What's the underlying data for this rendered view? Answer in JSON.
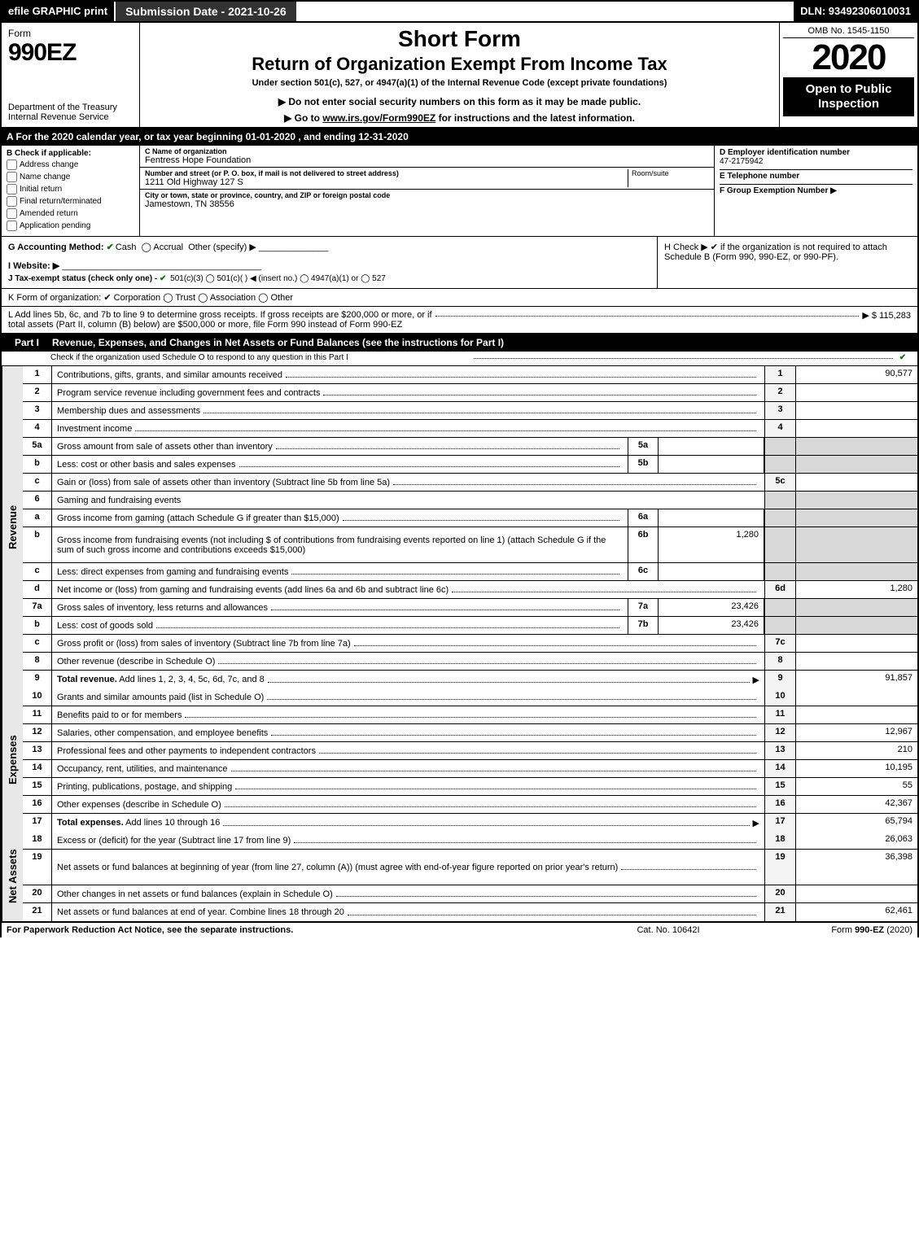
{
  "topbar": {
    "efile": "efile GRAPHIC print",
    "subdate": "Submission Date - 2021-10-26",
    "dln": "DLN: 93492306010031"
  },
  "header": {
    "form_label": "Form",
    "form_no": "990EZ",
    "dept": "Department of the Treasury\nInternal Revenue Service",
    "short": "Short Form",
    "return_title": "Return of Organization Exempt From Income Tax",
    "undersec": "Under section 501(c), 527, or 4947(a)(1) of the Internal Revenue Code (except private foundations)",
    "warn": "▶ Do not enter social security numbers on this form as it may be made public.",
    "goto_pre": "▶ Go to ",
    "goto_link": "www.irs.gov/Form990EZ",
    "goto_post": " for instructions and the latest information.",
    "omb": "OMB No. 1545-1150",
    "year": "2020",
    "inspect": "Open to Public Inspection"
  },
  "row_a": "A For the 2020 calendar year, or tax year beginning 01-01-2020 , and ending 12-31-2020",
  "col_b": {
    "hdr": "B  Check if applicable:",
    "items": [
      "Address change",
      "Name change",
      "Initial return",
      "Final return/terminated",
      "Amended return",
      "Application pending"
    ]
  },
  "col_c": {
    "name_lbl": "C Name of organization",
    "name_val": "Fentress Hope Foundation",
    "addr_lbl": "Number and street (or P. O. box, if mail is not delivered to street address)",
    "addr_val": "1211 Old Highway 127 S",
    "room_lbl": "Room/suite",
    "city_lbl": "City or town, state or province, country, and ZIP or foreign postal code",
    "city_val": "Jamestown, TN  38556"
  },
  "col_d": {
    "ein_lbl": "D Employer identification number",
    "ein_val": "47-2175942",
    "tel_lbl": "E Telephone number",
    "tel_val": "",
    "grp_lbl": "F Group Exemption Number  ▶",
    "grp_val": ""
  },
  "row_g": {
    "g": "G Accounting Method:",
    "cash": "Cash",
    "accrual": "Accrual",
    "other": "Other (specify) ▶",
    "i": "I Website: ▶",
    "j": "J Tax-exempt status (check only one) - ",
    "j_opts": "501(c)(3)  ◯ 501(c)(  ) ◀ (insert no.)  ◯ 4947(a)(1) or  ◯ 527"
  },
  "row_h": "H  Check ▶ ✔ if the organization is not required to attach Schedule B (Form 990, 990-EZ, or 990-PF).",
  "row_k": "K Form of organization:  ✔ Corporation  ◯ Trust  ◯ Association  ◯ Other",
  "row_l": {
    "txt": "L Add lines 5b, 6c, and 7b to line 9 to determine gross receipts. If gross receipts are $200,000 or more, or if total assets (Part II, column (B) below) are $500,000 or more, file Form 990 instead of Form 990-EZ",
    "val": "▶ $ 115,283"
  },
  "part1": {
    "num": "Part I",
    "title": "Revenue, Expenses, and Changes in Net Assets or Fund Balances (see the instructions for Part I)",
    "sub": "Check if the organization used Schedule O to respond to any question in this Part I"
  },
  "sections": {
    "revenue": "Revenue",
    "expenses": "Expenses",
    "netassets": "Net Assets"
  },
  "lines": [
    {
      "sec": "revenue",
      "n": "1",
      "d": "Contributions, gifts, grants, and similar amounts received",
      "on": "1",
      "ov": "90,577"
    },
    {
      "sec": "revenue",
      "n": "2",
      "d": "Program service revenue including government fees and contracts",
      "on": "2",
      "ov": ""
    },
    {
      "sec": "revenue",
      "n": "3",
      "d": "Membership dues and assessments",
      "on": "3",
      "ov": ""
    },
    {
      "sec": "revenue",
      "n": "4",
      "d": "Investment income",
      "on": "4",
      "ov": ""
    },
    {
      "sec": "revenue",
      "n": "5a",
      "d": "Gross amount from sale of assets other than inventory",
      "in": "5a",
      "iv": "",
      "shade": true
    },
    {
      "sec": "revenue",
      "n": "b",
      "d": "Less: cost or other basis and sales expenses",
      "in": "5b",
      "iv": "",
      "shade": true
    },
    {
      "sec": "revenue",
      "n": "c",
      "d": "Gain or (loss) from sale of assets other than inventory (Subtract line 5b from line 5a)",
      "on": "5c",
      "ov": ""
    },
    {
      "sec": "revenue",
      "n": "6",
      "d": "Gaming and fundraising events",
      "plain": true,
      "shade": true
    },
    {
      "sec": "revenue",
      "n": "a",
      "d": "Gross income from gaming (attach Schedule G if greater than $15,000)",
      "in": "6a",
      "iv": "",
      "shade": true
    },
    {
      "sec": "revenue",
      "n": "b",
      "d": "Gross income from fundraising events (not including $                  of contributions from fundraising events reported on line 1) (attach Schedule G if the sum of such gross income and contributions exceeds $15,000)",
      "in": "6b",
      "iv": "1,280",
      "shade": true,
      "tall": true
    },
    {
      "sec": "revenue",
      "n": "c",
      "d": "Less: direct expenses from gaming and fundraising events",
      "in": "6c",
      "iv": "",
      "shade": true
    },
    {
      "sec": "revenue",
      "n": "d",
      "d": "Net income or (loss) from gaming and fundraising events (add lines 6a and 6b and subtract line 6c)",
      "on": "6d",
      "ov": "1,280"
    },
    {
      "sec": "revenue",
      "n": "7a",
      "d": "Gross sales of inventory, less returns and allowances",
      "in": "7a",
      "iv": "23,426",
      "shade": true
    },
    {
      "sec": "revenue",
      "n": "b",
      "d": "Less: cost of goods sold",
      "in": "7b",
      "iv": "23,426",
      "shade": true
    },
    {
      "sec": "revenue",
      "n": "c",
      "d": "Gross profit or (loss) from sales of inventory (Subtract line 7b from line 7a)",
      "on": "7c",
      "ov": ""
    },
    {
      "sec": "revenue",
      "n": "8",
      "d": "Other revenue (describe in Schedule O)",
      "on": "8",
      "ov": ""
    },
    {
      "sec": "revenue",
      "n": "9",
      "d": "Total revenue. Add lines 1, 2, 3, 4, 5c, 6d, 7c, and 8",
      "on": "9",
      "ov": "91,857",
      "bold": true,
      "arrow": true
    },
    {
      "sec": "expenses",
      "n": "10",
      "d": "Grants and similar amounts paid (list in Schedule O)",
      "on": "10",
      "ov": ""
    },
    {
      "sec": "expenses",
      "n": "11",
      "d": "Benefits paid to or for members",
      "on": "11",
      "ov": ""
    },
    {
      "sec": "expenses",
      "n": "12",
      "d": "Salaries, other compensation, and employee benefits",
      "on": "12",
      "ov": "12,967"
    },
    {
      "sec": "expenses",
      "n": "13",
      "d": "Professional fees and other payments to independent contractors",
      "on": "13",
      "ov": "210"
    },
    {
      "sec": "expenses",
      "n": "14",
      "d": "Occupancy, rent, utilities, and maintenance",
      "on": "14",
      "ov": "10,195"
    },
    {
      "sec": "expenses",
      "n": "15",
      "d": "Printing, publications, postage, and shipping",
      "on": "15",
      "ov": "55"
    },
    {
      "sec": "expenses",
      "n": "16",
      "d": "Other expenses (describe in Schedule O)",
      "on": "16",
      "ov": "42,367"
    },
    {
      "sec": "expenses",
      "n": "17",
      "d": "Total expenses. Add lines 10 through 16",
      "on": "17",
      "ov": "65,794",
      "bold": true,
      "arrow": true
    },
    {
      "sec": "netassets",
      "n": "18",
      "d": "Excess or (deficit) for the year (Subtract line 17 from line 9)",
      "on": "18",
      "ov": "26,063"
    },
    {
      "sec": "netassets",
      "n": "19",
      "d": "Net assets or fund balances at beginning of year (from line 27, column (A)) (must agree with end-of-year figure reported on prior year's return)",
      "on": "19",
      "ov": "36,398",
      "tall": true
    },
    {
      "sec": "netassets",
      "n": "20",
      "d": "Other changes in net assets or fund balances (explain in Schedule O)",
      "on": "20",
      "ov": ""
    },
    {
      "sec": "netassets",
      "n": "21",
      "d": "Net assets or fund balances at end of year. Combine lines 18 through 20",
      "on": "21",
      "ov": "62,461"
    }
  ],
  "footer": {
    "l": "For Paperwork Reduction Act Notice, see the separate instructions.",
    "c": "Cat. No. 10642I",
    "r": "Form 990-EZ (2020)"
  }
}
